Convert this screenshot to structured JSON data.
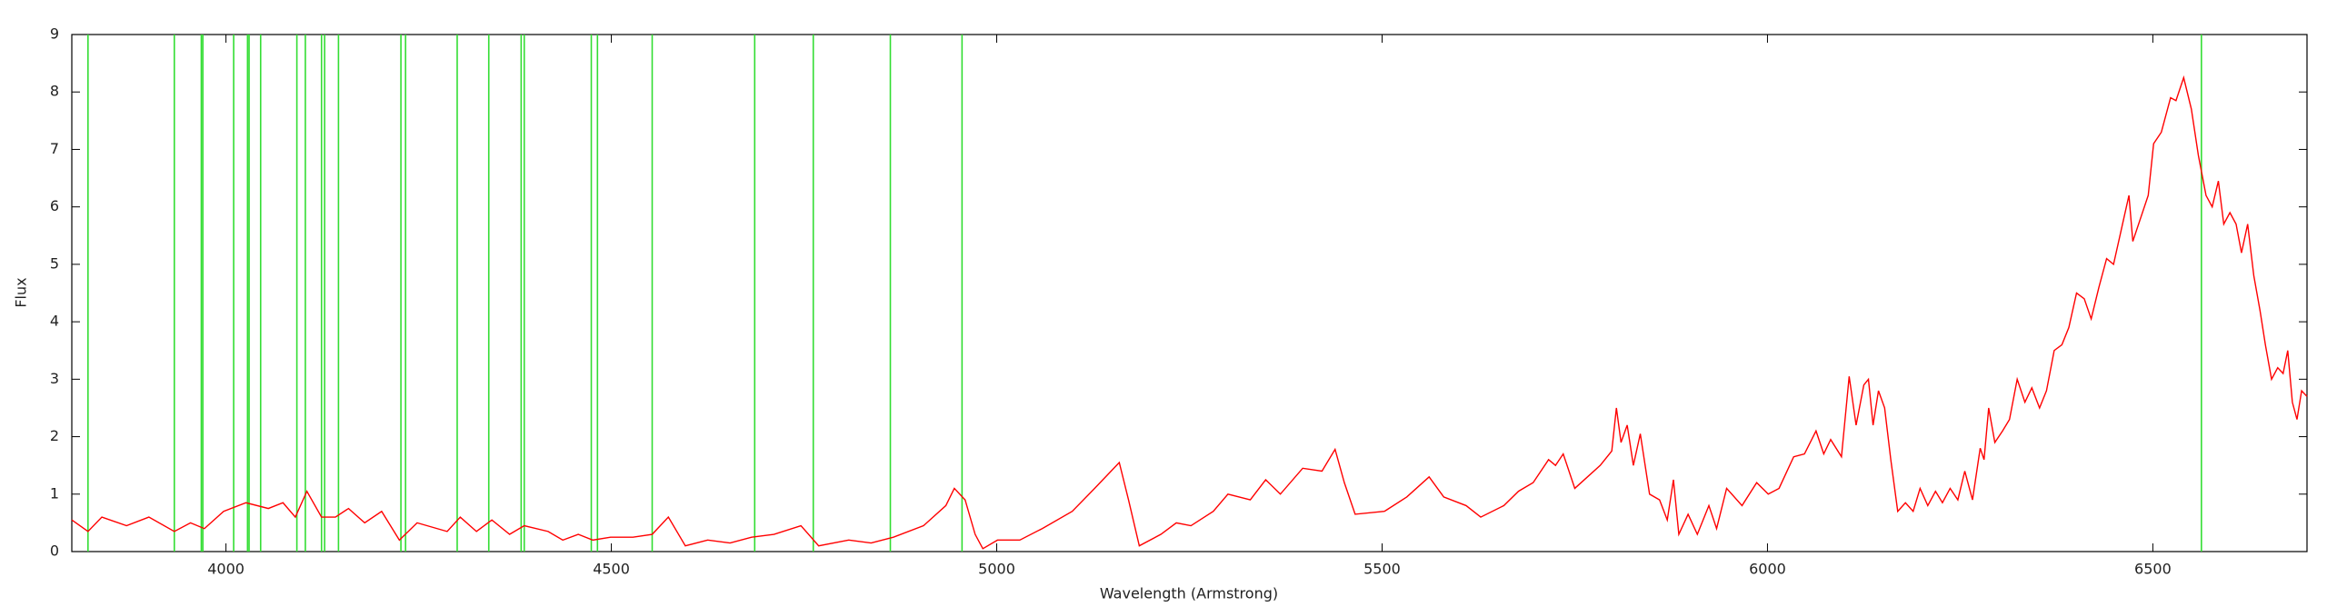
{
  "chart_data": {
    "type": "line",
    "x_label": "Wavelength (Armstrong)",
    "y_label": "Flux",
    "xlim": [
      3800,
      6700
    ],
    "xticks": [
      4000,
      4500,
      5000,
      5500,
      6000,
      6500
    ],
    "ylim": [
      0,
      9
    ],
    "yticks": [
      0,
      1,
      2,
      3,
      4,
      5,
      6,
      7,
      8,
      9
    ],
    "lines": {
      "color": "#33dd33",
      "x": [
        3821,
        3933,
        3968,
        3970,
        4010,
        4028,
        4030,
        4045,
        4092,
        4103,
        4124,
        4128,
        4146,
        4227,
        4233,
        4300,
        4341,
        4383,
        4387,
        4474,
        4482,
        4553,
        4686,
        4762,
        4862,
        4955,
        6563
      ]
    },
    "series": [
      {
        "color": "#ff0000",
        "x": [
          3800,
          3821,
          3839,
          3871,
          3900,
          3933,
          3954,
          3972,
          3997,
          4026,
          4055,
          4074,
          4090,
          4105,
          4124,
          4142,
          4159,
          4180,
          4202,
          4225,
          4248,
          4287,
          4304,
          4325,
          4345,
          4368,
          4387,
          4418,
          4437,
          4457,
          4476,
          4499,
          4528,
          4553,
          4574,
          4596,
          4625,
          4654,
          4682,
          4711,
          4746,
          4769,
          4808,
          4837,
          4866,
          4905,
          4934,
          4945,
          4959,
          4972,
          4982,
          5001,
          5030,
          5059,
          5098,
          5127,
          5159,
          5171,
          5185,
          5213,
          5233,
          5252,
          5281,
          5300,
          5329,
          5349,
          5368,
          5397,
          5422,
          5439,
          5451,
          5465,
          5503,
          5532,
          5561,
          5580,
          5609,
          5628,
          5658,
          5677,
          5696,
          5716,
          5725,
          5735,
          5750,
          5783,
          5798,
          5804,
          5810,
          5818,
          5826,
          5835,
          5847,
          5860,
          5870,
          5878,
          5885,
          5897,
          5909,
          5924,
          5934,
          5947,
          5967,
          5986,
          6001,
          6015,
          6034,
          6048,
          6063,
          6073,
          6082,
          6096,
          6106,
          6115,
          6125,
          6131,
          6137,
          6144,
          6152,
          6160,
          6169,
          6179,
          6189,
          6198,
          6208,
          6218,
          6227,
          6237,
          6247,
          6256,
          6266,
          6276,
          6281,
          6287,
          6295,
          6305,
          6314,
          6324,
          6334,
          6343,
          6353,
          6362,
          6372,
          6382,
          6391,
          6401,
          6411,
          6420,
          6430,
          6440,
          6449,
          6459,
          6469,
          6474,
          6484,
          6494,
          6501,
          6511,
          6523,
          6530,
          6540,
          6550,
          6559,
          6569,
          6577,
          6585,
          6592,
          6600,
          6608,
          6615,
          6623,
          6631,
          6639,
          6646,
          6654,
          6662,
          6669,
          6675,
          6681,
          6687,
          6693,
          6700
        ],
        "values": [
          0.55,
          0.35,
          0.6,
          0.45,
          0.6,
          0.35,
          0.5,
          0.4,
          0.7,
          0.85,
          0.75,
          0.85,
          0.6,
          1.05,
          0.6,
          0.6,
          0.75,
          0.5,
          0.7,
          0.2,
          0.5,
          0.35,
          0.6,
          0.35,
          0.55,
          0.3,
          0.45,
          0.35,
          0.2,
          0.3,
          0.2,
          0.25,
          0.25,
          0.3,
          0.6,
          0.1,
          0.2,
          0.15,
          0.25,
          0.3,
          0.45,
          0.1,
          0.2,
          0.15,
          0.25,
          0.45,
          0.8,
          1.1,
          0.9,
          0.3,
          0.05,
          0.2,
          0.2,
          0.4,
          0.7,
          1.1,
          1.55,
          0.9,
          0.1,
          0.3,
          0.5,
          0.45,
          0.7,
          1.0,
          0.9,
          1.25,
          1.0,
          1.45,
          1.4,
          1.78,
          1.2,
          0.65,
          0.7,
          0.95,
          1.3,
          0.95,
          0.8,
          0.6,
          0.8,
          1.05,
          1.2,
          1.6,
          1.5,
          1.7,
          1.1,
          1.5,
          1.75,
          2.5,
          1.9,
          2.2,
          1.5,
          2.05,
          1.0,
          0.9,
          0.55,
          1.25,
          0.3,
          0.65,
          0.3,
          0.8,
          0.4,
          1.1,
          0.8,
          1.2,
          1.0,
          1.1,
          1.65,
          1.7,
          2.1,
          1.7,
          1.95,
          1.65,
          3.05,
          2.2,
          2.9,
          3.0,
          2.2,
          2.8,
          2.5,
          1.6,
          0.7,
          0.85,
          0.7,
          1.1,
          0.8,
          1.05,
          0.85,
          1.1,
          0.9,
          1.4,
          0.9,
          1.8,
          1.6,
          2.5,
          1.9,
          2.1,
          2.3,
          3.0,
          2.6,
          2.85,
          2.5,
          2.8,
          3.5,
          3.6,
          3.9,
          4.5,
          4.4,
          4.05,
          4.6,
          5.1,
          5.0,
          5.6,
          6.2,
          5.4,
          5.8,
          6.2,
          7.1,
          7.3,
          7.9,
          7.85,
          8.25,
          7.7,
          6.9,
          6.2,
          6.0,
          6.45,
          5.7,
          5.9,
          5.7,
          5.2,
          5.7,
          4.8,
          4.2,
          3.6,
          3.0,
          3.2,
          3.1,
          3.5,
          2.6,
          2.3,
          2.8,
          2.7
        ]
      }
    ]
  }
}
